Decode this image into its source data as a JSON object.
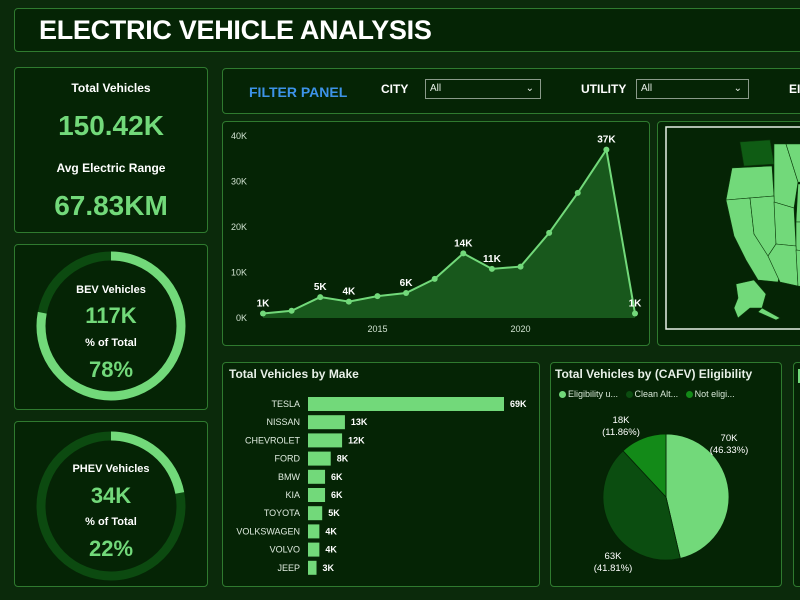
{
  "title": "ELECTRIC VEHICLE ANALYSIS",
  "kpis": {
    "total_vehicles_label": "Total Vehicles",
    "total_vehicles_value": "150.42K",
    "avg_range_label": "Avg Electric Range",
    "avg_range_value": "67.83KM"
  },
  "bev": {
    "label": "BEV Vehicles",
    "value": "117K",
    "pct_label": "% of Total",
    "pct_value": "78%",
    "fraction": 0.78
  },
  "phev": {
    "label": "PHEV Vehicles",
    "value": "34K",
    "pct_label": "% of Total",
    "pct_value": "22%",
    "fraction": 0.22
  },
  "filters": {
    "title": "FILTER PANEL",
    "city_label": "CITY",
    "city_value": "All",
    "utility_label": "UTILITY",
    "utility_value": "All",
    "third_label_partial": "EI"
  },
  "colors": {
    "accent": "#72d97a",
    "dark_green": "#0b4d10",
    "mid_green": "#138a18",
    "light_green": "#72d97a",
    "track": "#0c4a10",
    "panel": "#052405",
    "border": "#2f7a2f"
  },
  "chart_data": [
    {
      "type": "area",
      "title": "",
      "x": [
        2011,
        2012,
        2013,
        2014,
        2015,
        2016,
        2017,
        2018,
        2019,
        2020,
        2021,
        2022,
        2023,
        2024
      ],
      "values": [
        1000,
        1600,
        4600,
        3600,
        4800,
        5500,
        8600,
        14200,
        10800,
        11300,
        18700,
        27500,
        37000,
        1000
      ],
      "data_labels": [
        "1K",
        "",
        "5K",
        "4K",
        "",
        "6K",
        "",
        "14K",
        "11K",
        "",
        "",
        "",
        "37K",
        "1K"
      ],
      "xticks": [
        2015,
        2020
      ],
      "xtick_labels": [
        "2015",
        "2020"
      ],
      "yticks": [
        0,
        10000,
        20000,
        30000,
        40000
      ],
      "ytick_labels": [
        "0K",
        "10K",
        "20K",
        "30K",
        "40K"
      ],
      "ylim": [
        0,
        40000
      ],
      "grid": false
    },
    {
      "type": "bar",
      "orientation": "horizontal",
      "title": "Total Vehicles by Make",
      "categories": [
        "TESLA",
        "NISSAN",
        "CHEVROLET",
        "FORD",
        "BMW",
        "KIA",
        "TOYOTA",
        "VOLKSWAGEN",
        "VOLVO",
        "JEEP"
      ],
      "values": [
        69000,
        13000,
        12000,
        8000,
        6000,
        6000,
        5000,
        4000,
        4000,
        3000
      ],
      "value_labels": [
        "69K",
        "13K",
        "12K",
        "8K",
        "6K",
        "6K",
        "5K",
        "4K",
        "4K",
        "3K"
      ]
    },
    {
      "type": "pie",
      "title": "Total Vehicles by (CAFV) Eligibility",
      "legend": [
        "Eligibility u...",
        "Clean Alt...",
        "Not eligi..."
      ],
      "legend_position": "top",
      "values": [
        70000,
        63000,
        18000
      ],
      "value_labels": [
        "70K",
        "63K",
        "18K"
      ],
      "pct_labels": [
        "(46.33%)",
        "(41.81%)",
        "(11.86%)"
      ],
      "colors": [
        "#72d97a",
        "#0b4d10",
        "#138a18"
      ]
    }
  ],
  "map": {
    "region": "USA"
  }
}
